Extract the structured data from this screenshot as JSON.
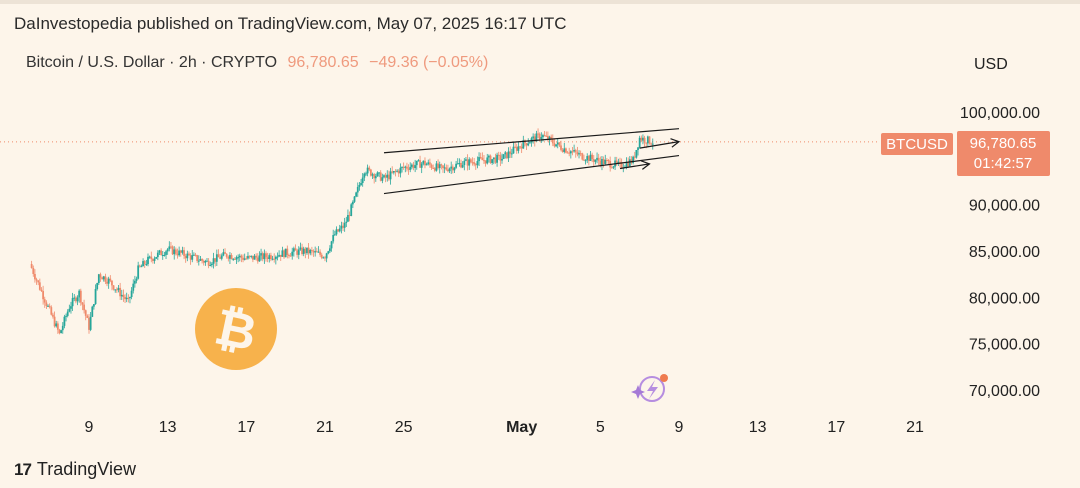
{
  "header": {
    "publisher_line": "DaInvestopedia published on TradingView.com, May 07, 2025 16:17 UTC"
  },
  "legend": {
    "symbol_text": "Bitcoin / U.S. Dollar · 2h · CRYPTO",
    "last_price": "96,780.65",
    "change": "−49.36 (−0.05%)"
  },
  "axis": {
    "currency": "USD"
  },
  "price_tag": {
    "ticker": "BTCUSD",
    "price": "96,780.65",
    "countdown": "01:42:57"
  },
  "footer": {
    "brand_logo": "17",
    "brand_name": "TradingView"
  },
  "colors": {
    "background": "#fdf5ea",
    "up_candle": "#26a69a",
    "down_candle": "#ef8a6b",
    "price_tag": "#ef8a6b",
    "bitcoin_logo": "#f7b24c",
    "channel_lines": "#1a1a1a"
  },
  "icons": [
    "bitcoin-logo-icon",
    "sparkle-lightning-icon",
    "tradingview-logo-icon"
  ],
  "chart_data": {
    "type": "candlestick",
    "title": "Bitcoin / U.S. Dollar · 2h · CRYPTO",
    "ylabel": "USD",
    "ylim": [
      68000,
      105000
    ],
    "y_ticks": [
      {
        "value": 100000,
        "label": "100,000.00"
      },
      {
        "value": 90000,
        "label": "90,000.00"
      },
      {
        "value": 85000,
        "label": "85,000.00"
      },
      {
        "value": 80000,
        "label": "80,000.00"
      },
      {
        "value": 75000,
        "label": "75,000.00"
      },
      {
        "value": 70000,
        "label": "70,000.00"
      }
    ],
    "x_ticks": [
      {
        "date": "2025-04-09",
        "label": "9"
      },
      {
        "date": "2025-04-13",
        "label": "13"
      },
      {
        "date": "2025-04-17",
        "label": "17"
      },
      {
        "date": "2025-04-21",
        "label": "21"
      },
      {
        "date": "2025-04-25",
        "label": "25"
      },
      {
        "date": "2025-05-01",
        "label": "May"
      },
      {
        "date": "2025-05-05",
        "label": "5"
      },
      {
        "date": "2025-05-09",
        "label": "9"
      },
      {
        "date": "2025-05-13",
        "label": "13"
      },
      {
        "date": "2025-05-17",
        "label": "17"
      },
      {
        "date": "2025-05-21",
        "label": "21"
      }
    ],
    "x_range": [
      "2025-04-06",
      "2025-05-23"
    ],
    "price_path": [
      {
        "date": "2025-04-06",
        "close": 83600
      },
      {
        "date": "2025-04-07",
        "close": 78500
      },
      {
        "date": "2025-04-07T12:00",
        "close": 76000
      },
      {
        "date": "2025-04-08",
        "close": 79000
      },
      {
        "date": "2025-04-08T12:00",
        "close": 80500
      },
      {
        "date": "2025-04-09",
        "close": 76800
      },
      {
        "date": "2025-04-09T12:00",
        "close": 82500
      },
      {
        "date": "2025-04-10",
        "close": 81800
      },
      {
        "date": "2025-04-11",
        "close": 79500
      },
      {
        "date": "2025-04-11T12:00",
        "close": 83000
      },
      {
        "date": "2025-04-12",
        "close": 84000
      },
      {
        "date": "2025-04-13",
        "close": 85200
      },
      {
        "date": "2025-04-14",
        "close": 84500
      },
      {
        "date": "2025-04-15",
        "close": 83800
      },
      {
        "date": "2025-04-16",
        "close": 84600
      },
      {
        "date": "2025-04-17",
        "close": 84200
      },
      {
        "date": "2025-04-18",
        "close": 84400
      },
      {
        "date": "2025-04-19",
        "close": 84800
      },
      {
        "date": "2025-04-20",
        "close": 85000
      },
      {
        "date": "2025-04-21",
        "close": 84500
      },
      {
        "date": "2025-04-21T12:00",
        "close": 86800
      },
      {
        "date": "2025-04-22",
        "close": 87800
      },
      {
        "date": "2025-04-22T12:00",
        "close": 90500
      },
      {
        "date": "2025-04-23",
        "close": 93800
      },
      {
        "date": "2025-04-24",
        "close": 92800
      },
      {
        "date": "2025-04-25",
        "close": 94000
      },
      {
        "date": "2025-04-26",
        "close": 94500
      },
      {
        "date": "2025-04-27",
        "close": 93800
      },
      {
        "date": "2025-04-28",
        "close": 94500
      },
      {
        "date": "2025-04-29",
        "close": 94800
      },
      {
        "date": "2025-04-30",
        "close": 95000
      },
      {
        "date": "2025-05-01",
        "close": 96500
      },
      {
        "date": "2025-05-02",
        "close": 97500
      },
      {
        "date": "2025-05-03",
        "close": 96200
      },
      {
        "date": "2025-05-04",
        "close": 95300
      },
      {
        "date": "2025-05-05",
        "close": 94700
      },
      {
        "date": "2025-05-06",
        "close": 94200
      },
      {
        "date": "2025-05-06T16:00",
        "close": 94800
      },
      {
        "date": "2025-05-07",
        "close": 97200
      },
      {
        "date": "2025-05-07T16:00",
        "close": 96780.65
      }
    ],
    "annotations": [
      {
        "type": "ascending-channel",
        "upper": [
          [
            "2025-04-24",
            95600
          ],
          [
            "2025-05-09",
            98200
          ]
        ],
        "lower": [
          [
            "2025-04-24",
            91200
          ],
          [
            "2025-05-09",
            95300
          ]
        ]
      },
      {
        "type": "arrow",
        "from": [
          "2025-05-06",
          93900
        ],
        "to": [
          "2025-05-07T12:00",
          94400
        ]
      },
      {
        "type": "arrow",
        "from": [
          "2025-05-07",
          96100
        ],
        "to": [
          "2025-05-09",
          96800
        ]
      }
    ],
    "current_price": 96780.65
  }
}
